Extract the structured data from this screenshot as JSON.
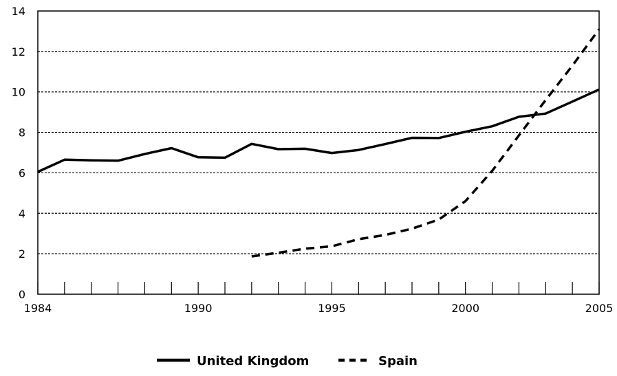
{
  "chart_data": {
    "type": "line",
    "title": "",
    "xlabel": "",
    "ylabel": "",
    "xlim": [
      1984,
      2005
    ],
    "ylim": [
      0,
      14
    ],
    "x_ticks": [
      1984,
      1985,
      1986,
      1987,
      1988,
      1989,
      1990,
      1991,
      1992,
      1993,
      1994,
      1995,
      1996,
      1997,
      1998,
      1999,
      2000,
      2001,
      2002,
      2003,
      2004,
      2005
    ],
    "x_tick_labels": [
      {
        "value": 1984,
        "label": "1984"
      },
      {
        "value": 1990,
        "label": "1990"
      },
      {
        "value": 1995,
        "label": "1995"
      },
      {
        "value": 2000,
        "label": "2000"
      },
      {
        "value": 2005,
        "label": "2005"
      }
    ],
    "y_ticks": [
      0,
      2,
      4,
      6,
      8,
      10,
      12,
      14
    ],
    "y_tick_labels": [
      "0",
      "2",
      "4",
      "6",
      "8",
      "10",
      "12",
      "14"
    ],
    "grid": "horizontal dotted",
    "legend_position": "bottom",
    "series": [
      {
        "name": "United Kingdom",
        "style": "solid",
        "color": "#000000",
        "x": [
          1984,
          1985,
          1986,
          1987,
          1988,
          1989,
          1990,
          1991,
          1992,
          1993,
          1994,
          1995,
          1996,
          1997,
          1998,
          1999,
          2000,
          2001,
          2002,
          2003,
          2004,
          2005
        ],
        "values": [
          6.05,
          6.65,
          6.62,
          6.6,
          6.93,
          7.22,
          6.77,
          6.75,
          7.43,
          7.17,
          7.19,
          6.98,
          7.13,
          7.42,
          7.73,
          7.72,
          8.03,
          8.3,
          8.77,
          8.93,
          9.52,
          10.12
        ]
      },
      {
        "name": "Spain",
        "style": "dashed",
        "color": "#000000",
        "x": [
          1992,
          1993,
          1994,
          1995,
          1996,
          1997,
          1998,
          1999,
          2000,
          2001,
          2002,
          2003,
          2004,
          2005
        ],
        "values": [
          1.87,
          2.05,
          2.25,
          2.37,
          2.72,
          2.93,
          3.24,
          3.69,
          4.6,
          6.1,
          7.85,
          9.6,
          11.3,
          13.1
        ]
      }
    ]
  }
}
